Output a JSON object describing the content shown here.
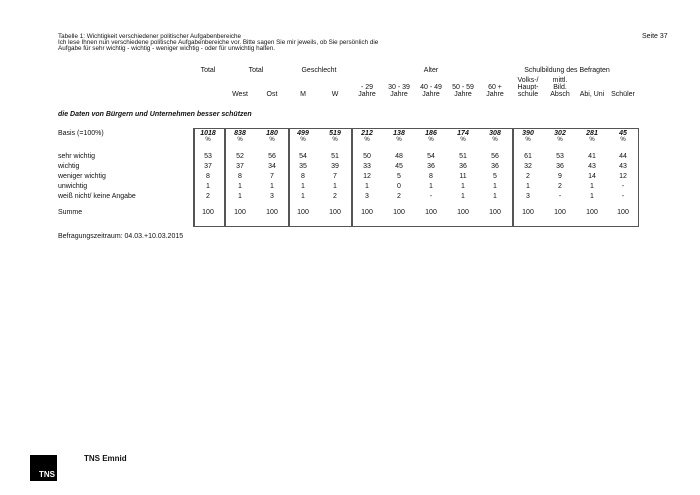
{
  "header": {
    "title": "Tabelle 1: Wichtigkeit verschiedener politischer Aufgabenbereiche",
    "question_line1": "Ich lese Ihnen nun verschiedene politische Aufgabenbereiche vor. Bitte sagen Sie mir jeweils, ob Sie persönlich die",
    "question_line2": "Aufgabe für sehr wichtig - wichtig - weniger wichtig - oder für unwichtig halten.",
    "page": "Seite 37"
  },
  "groups": [
    "Total",
    "Total",
    "Geschlecht",
    "Alter",
    "Schulbildung des Befragten"
  ],
  "columns": [
    [
      "",
      ""
    ],
    [
      "West"
    ],
    [
      "Ost"
    ],
    [
      "M"
    ],
    [
      "W"
    ],
    [
      "- 29",
      "Jahre"
    ],
    [
      "30 - 39",
      "Jahre"
    ],
    [
      "40 - 49",
      "Jahre"
    ],
    [
      "50 - 59",
      "Jahre"
    ],
    [
      "60 +",
      "Jahre"
    ],
    [
      "Volks-/",
      "Haupt-",
      "schule"
    ],
    [
      "mittl.",
      "Bild.",
      "Absch"
    ],
    [
      "Abi, Uni"
    ],
    [
      "Schüler"
    ]
  ],
  "section": "die Daten von Bürgern und Unternehmen besser schützen",
  "basis": {
    "label": "Basis (=100%)",
    "values": [
      "1018",
      "838",
      "180",
      "499",
      "519",
      "212",
      "138",
      "186",
      "174",
      "308",
      "390",
      "302",
      "281",
      "45"
    ],
    "unit": "%"
  },
  "rows": [
    {
      "label": "sehr wichtig",
      "values": [
        "53",
        "52",
        "56",
        "54",
        "51",
        "50",
        "48",
        "54",
        "51",
        "56",
        "61",
        "53",
        "41",
        "44"
      ]
    },
    {
      "label": "wichtig",
      "values": [
        "37",
        "37",
        "34",
        "35",
        "39",
        "33",
        "45",
        "36",
        "36",
        "36",
        "32",
        "36",
        "43",
        "43"
      ]
    },
    {
      "label": "weniger wichtig",
      "values": [
        "8",
        "8",
        "7",
        "8",
        "7",
        "12",
        "5",
        "8",
        "11",
        "5",
        "2",
        "9",
        "14",
        "12"
      ]
    },
    {
      "label": "unwichtig",
      "values": [
        "1",
        "1",
        "1",
        "1",
        "1",
        "1",
        "0",
        "1",
        "1",
        "1",
        "1",
        "2",
        "1",
        "-"
      ]
    },
    {
      "label": "weiß nicht/ keine Angabe",
      "values": [
        "2",
        "1",
        "3",
        "1",
        "2",
        "3",
        "2",
        "-",
        "1",
        "1",
        "3",
        "-",
        "1",
        "-"
      ]
    },
    {
      "label": "Summe",
      "values": [
        "100",
        "100",
        "100",
        "100",
        "100",
        "100",
        "100",
        "100",
        "100",
        "100",
        "100",
        "100",
        "100",
        "100"
      ]
    }
  ],
  "footer": {
    "period": "Befragungszeitraum: 04.03.+10.03.2015",
    "brand": "TNS Emnid",
    "logo_text": "TNS"
  }
}
